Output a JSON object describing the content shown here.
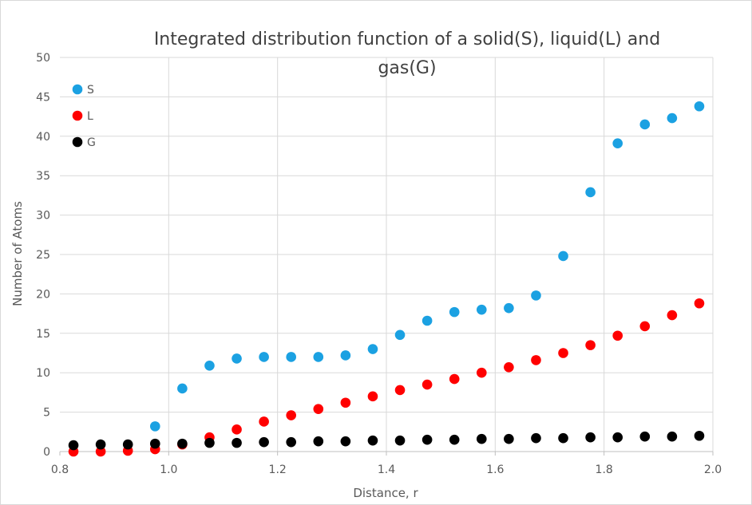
{
  "chart_data": {
    "type": "scatter",
    "title_lines": [
      "Integrated distribution function of a solid(S), liquid(L) and",
      "gas(G)"
    ],
    "xlabel": "Distance, r",
    "ylabel": "Number of Atoms",
    "xlim": [
      0.8,
      2.0
    ],
    "ylim": [
      0,
      50
    ],
    "xticks": [
      "0.8",
      "1.0",
      "1.2",
      "1.4",
      "1.6",
      "1.8",
      "2.0"
    ],
    "yticks": [
      "0",
      "5",
      "10",
      "15",
      "20",
      "25",
      "30",
      "35",
      "40",
      "45",
      "50"
    ],
    "grid": true,
    "legend_position": "top-left",
    "x": [
      0.825,
      0.875,
      0.925,
      0.975,
      1.025,
      1.075,
      1.125,
      1.175,
      1.225,
      1.275,
      1.325,
      1.375,
      1.425,
      1.475,
      1.525,
      1.575,
      1.625,
      1.675,
      1.725,
      1.775,
      1.825,
      1.875,
      1.925,
      1.975
    ],
    "series": [
      {
        "name": "S",
        "color": "#1ba1e2",
        "values": [
          null,
          null,
          null,
          3.2,
          8.0,
          10.9,
          11.8,
          12.0,
          12.0,
          12.0,
          12.2,
          13.0,
          14.8,
          16.6,
          17.7,
          18.0,
          18.2,
          19.8,
          24.8,
          32.9,
          39.1,
          41.5,
          42.3,
          43.8
        ]
      },
      {
        "name": "L",
        "color": "#ff0000",
        "values": [
          0.0,
          0.0,
          0.1,
          0.3,
          0.9,
          1.8,
          2.8,
          3.8,
          4.6,
          5.4,
          6.2,
          7.0,
          7.8,
          8.5,
          9.2,
          10.0,
          10.7,
          11.6,
          12.5,
          13.5,
          14.7,
          15.9,
          17.3,
          18.8
        ]
      },
      {
        "name": "G",
        "color": "#000000",
        "values": [
          0.8,
          0.9,
          0.9,
          1.0,
          1.0,
          1.1,
          1.1,
          1.2,
          1.2,
          1.3,
          1.3,
          1.4,
          1.4,
          1.5,
          1.5,
          1.6,
          1.6,
          1.7,
          1.7,
          1.8,
          1.8,
          1.9,
          1.9,
          2.0
        ]
      }
    ]
  }
}
